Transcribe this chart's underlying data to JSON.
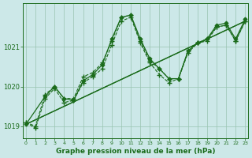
{
  "xlabel": "Graphe pression niveau de la mer (hPa)",
  "bg_color": "#cce8e8",
  "grid_color": "#99c4b0",
  "line_color": "#1a6b1a",
  "ylim": [
    1018.7,
    1022.1
  ],
  "xlim": [
    -0.3,
    23.3
  ],
  "yticks": [
    1019,
    1020,
    1021
  ],
  "xticks": [
    0,
    1,
    2,
    3,
    4,
    5,
    6,
    7,
    8,
    9,
    10,
    11,
    12,
    13,
    14,
    15,
    16,
    17,
    18,
    19,
    20,
    21,
    22,
    23
  ],
  "series": [
    {
      "x": [
        0,
        1,
        2,
        3,
        4,
        5,
        6,
        7,
        8,
        9,
        10,
        11,
        12,
        13,
        14,
        15,
        16,
        17,
        18,
        19,
        20,
        21,
        22,
        23
      ],
      "y": [
        1019.1,
        1019.0,
        1019.8,
        1020.0,
        1019.7,
        1019.7,
        1020.25,
        1020.35,
        1020.6,
        1021.15,
        1021.75,
        1021.8,
        1021.15,
        1020.65,
        1020.45,
        1020.2,
        1020.2,
        1020.9,
        1021.1,
        1021.2,
        1021.5,
        1021.55,
        1021.15,
        1021.65
      ],
      "marker": "+",
      "ls": "--",
      "lw": 0.8
    },
    {
      "x": [
        0,
        1,
        2,
        3,
        4,
        5,
        6,
        7,
        8,
        9,
        10,
        11,
        12,
        13,
        14,
        15,
        16,
        17,
        18,
        19,
        20,
        21,
        22,
        23
      ],
      "y": [
        1019.1,
        1018.95,
        1019.7,
        1019.95,
        1019.6,
        1019.65,
        1020.1,
        1020.25,
        1020.45,
        1021.05,
        1021.65,
        1021.75,
        1021.1,
        1020.6,
        1020.3,
        1020.1,
        1020.2,
        1020.85,
        1021.1,
        1021.15,
        1021.5,
        1021.55,
        1021.15,
        1021.65
      ],
      "marker": "+",
      "ls": "--",
      "lw": 0.8
    },
    {
      "x": [
        0,
        2,
        3,
        4,
        5,
        6,
        7,
        8,
        9,
        10,
        11,
        12,
        13,
        14,
        15,
        16,
        17,
        18,
        19,
        20,
        21,
        22,
        23
      ],
      "y": [
        1019.05,
        1019.75,
        1020.0,
        1019.7,
        1019.65,
        1020.15,
        1020.3,
        1020.55,
        1021.2,
        1021.75,
        1021.8,
        1021.2,
        1020.7,
        1020.45,
        1020.2,
        1020.2,
        1020.9,
        1021.1,
        1021.2,
        1021.55,
        1021.6,
        1021.2,
        1021.7
      ],
      "marker": "D",
      "ls": "-",
      "lw": 0.9
    },
    {
      "x": [
        0,
        23
      ],
      "y": [
        1019.05,
        1021.65
      ],
      "marker": null,
      "ls": "-",
      "lw": 0.9
    },
    {
      "x": [
        0,
        23
      ],
      "y": [
        1019.05,
        1021.65
      ],
      "marker": null,
      "ls": "-",
      "lw": 0.9
    }
  ]
}
